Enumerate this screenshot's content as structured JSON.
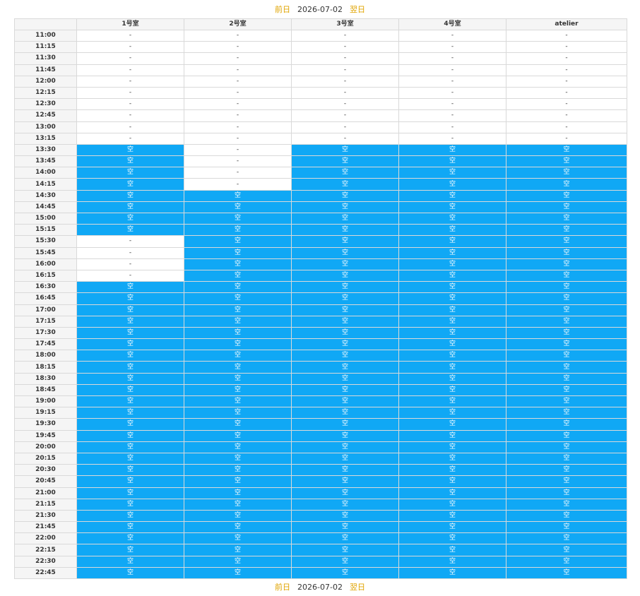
{
  "nav": {
    "prev_label": "前日",
    "date": "2026-07-02",
    "next_label": "翌日"
  },
  "colors": {
    "available": "#10a8f5",
    "nav_link": "#e0a400"
  },
  "rooms": [
    "1号室",
    "2号室",
    "3号室",
    "4号室",
    "atelier"
  ],
  "labels": {
    "available": "空",
    "unavailable": "-"
  },
  "times": [
    "11:00",
    "11:15",
    "11:30",
    "11:45",
    "12:00",
    "12:15",
    "12:30",
    "12:45",
    "13:00",
    "13:15",
    "13:30",
    "13:45",
    "14:00",
    "14:15",
    "14:30",
    "14:45",
    "15:00",
    "15:15",
    "15:30",
    "15:45",
    "16:00",
    "16:15",
    "16:30",
    "16:45",
    "17:00",
    "17:15",
    "17:30",
    "17:45",
    "18:00",
    "18:15",
    "18:30",
    "18:45",
    "19:00",
    "19:15",
    "19:30",
    "19:45",
    "20:00",
    "20:15",
    "20:30",
    "20:45",
    "21:00",
    "21:15",
    "21:30",
    "21:45",
    "22:00",
    "22:15",
    "22:30",
    "22:45"
  ],
  "slots": [
    [
      "-",
      "-",
      "-",
      "-",
      "-"
    ],
    [
      "-",
      "-",
      "-",
      "-",
      "-"
    ],
    [
      "-",
      "-",
      "-",
      "-",
      "-"
    ],
    [
      "-",
      "-",
      "-",
      "-",
      "-"
    ],
    [
      "-",
      "-",
      "-",
      "-",
      "-"
    ],
    [
      "-",
      "-",
      "-",
      "-",
      "-"
    ],
    [
      "-",
      "-",
      "-",
      "-",
      "-"
    ],
    [
      "-",
      "-",
      "-",
      "-",
      "-"
    ],
    [
      "-",
      "-",
      "-",
      "-",
      "-"
    ],
    [
      "-",
      "-",
      "-",
      "-",
      "-"
    ],
    [
      "空",
      "-",
      "空",
      "空",
      "空"
    ],
    [
      "空",
      "-",
      "空",
      "空",
      "空"
    ],
    [
      "空",
      "-",
      "空",
      "空",
      "空"
    ],
    [
      "空",
      "-",
      "空",
      "空",
      "空"
    ],
    [
      "空",
      "空",
      "空",
      "空",
      "空"
    ],
    [
      "空",
      "空",
      "空",
      "空",
      "空"
    ],
    [
      "空",
      "空",
      "空",
      "空",
      "空"
    ],
    [
      "空",
      "空",
      "空",
      "空",
      "空"
    ],
    [
      "-",
      "空",
      "空",
      "空",
      "空"
    ],
    [
      "-",
      "空",
      "空",
      "空",
      "空"
    ],
    [
      "-",
      "空",
      "空",
      "空",
      "空"
    ],
    [
      "-",
      "空",
      "空",
      "空",
      "空"
    ],
    [
      "空",
      "空",
      "空",
      "空",
      "空"
    ],
    [
      "空",
      "空",
      "空",
      "空",
      "空"
    ],
    [
      "空",
      "空",
      "空",
      "空",
      "空"
    ],
    [
      "空",
      "空",
      "空",
      "空",
      "空"
    ],
    [
      "空",
      "空",
      "空",
      "空",
      "空"
    ],
    [
      "空",
      "空",
      "空",
      "空",
      "空"
    ],
    [
      "空",
      "空",
      "空",
      "空",
      "空"
    ],
    [
      "空",
      "空",
      "空",
      "空",
      "空"
    ],
    [
      "空",
      "空",
      "空",
      "空",
      "空"
    ],
    [
      "空",
      "空",
      "空",
      "空",
      "空"
    ],
    [
      "空",
      "空",
      "空",
      "空",
      "空"
    ],
    [
      "空",
      "空",
      "空",
      "空",
      "空"
    ],
    [
      "空",
      "空",
      "空",
      "空",
      "空"
    ],
    [
      "空",
      "空",
      "空",
      "空",
      "空"
    ],
    [
      "空",
      "空",
      "空",
      "空",
      "空"
    ],
    [
      "空",
      "空",
      "空",
      "空",
      "空"
    ],
    [
      "空",
      "空",
      "空",
      "空",
      "空"
    ],
    [
      "空",
      "空",
      "空",
      "空",
      "空"
    ],
    [
      "空",
      "空",
      "空",
      "空",
      "空"
    ],
    [
      "空",
      "空",
      "空",
      "空",
      "空"
    ],
    [
      "空",
      "空",
      "空",
      "空",
      "空"
    ],
    [
      "空",
      "空",
      "空",
      "空",
      "空"
    ],
    [
      "空",
      "空",
      "空",
      "空",
      "空"
    ],
    [
      "空",
      "空",
      "空",
      "空",
      "空"
    ],
    [
      "空",
      "空",
      "空",
      "空",
      "空"
    ],
    [
      "空",
      "空",
      "空",
      "空",
      "空"
    ]
  ]
}
